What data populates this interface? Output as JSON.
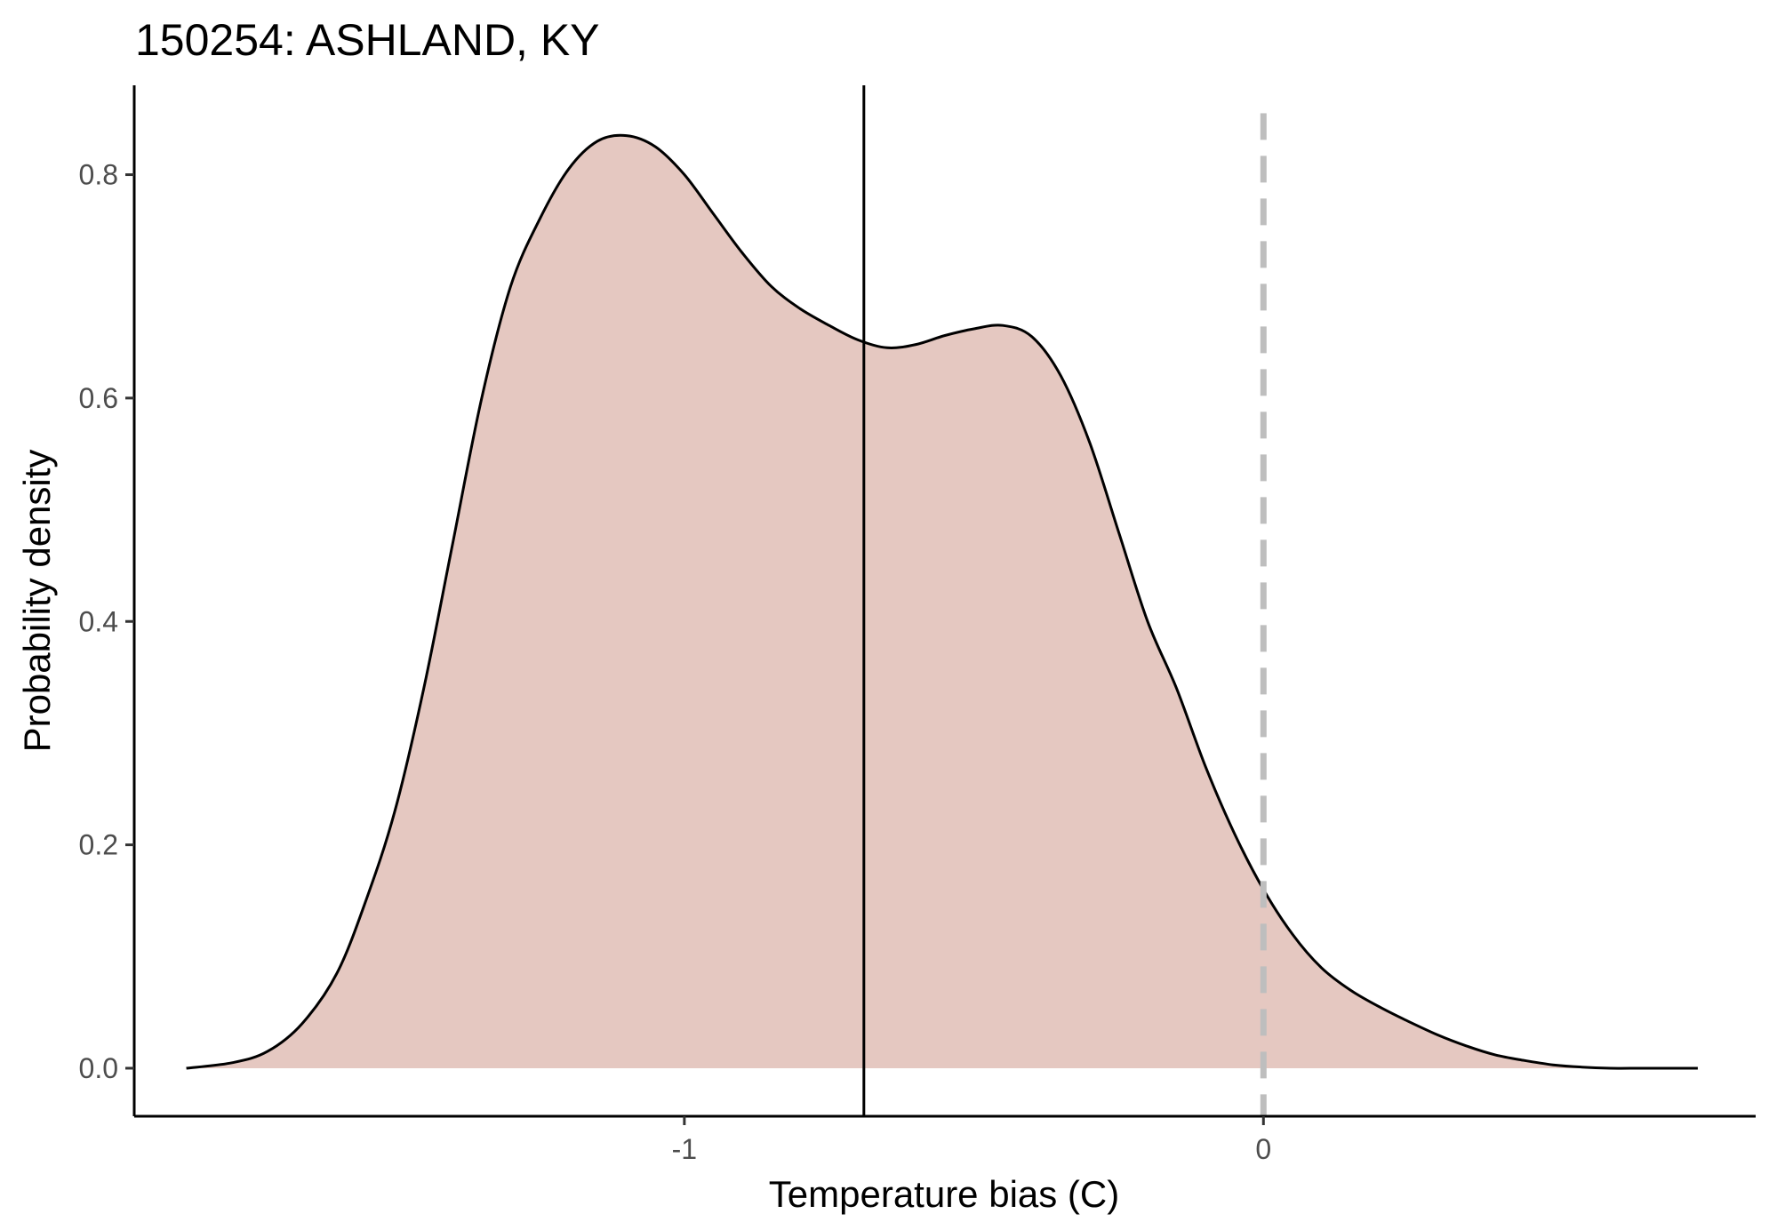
{
  "chart_data": {
    "type": "area",
    "title": "150254: ASHLAND, KY",
    "xlabel": "Temperature bias (C)",
    "ylabel": "Probability density",
    "xlim": [
      -1.95,
      0.85
    ],
    "ylim": [
      -0.043,
      0.88
    ],
    "x_ticks": [
      -1,
      0
    ],
    "x_tick_labels": [
      "-1",
      "0"
    ],
    "y_ticks": [
      0.0,
      0.2,
      0.4,
      0.6,
      0.8
    ],
    "y_tick_labels": [
      "0.0",
      "0.2",
      "0.4",
      "0.6",
      "0.8"
    ],
    "grid": false,
    "legend": "none",
    "fill_color": "#e5c8c1",
    "line_color": "#000000",
    "reference_lines": [
      {
        "x": -0.69,
        "style": "solid",
        "color": "#000000"
      },
      {
        "x": 0.0,
        "style": "dashed",
        "color": "#bebebe"
      }
    ],
    "series": [
      {
        "x": [
          -1.86,
          -1.78,
          -1.72,
          -1.66,
          -1.6,
          -1.55,
          -1.5,
          -1.45,
          -1.4,
          -1.35,
          -1.3,
          -1.25,
          -1.2,
          -1.15,
          -1.1,
          -1.05,
          -1.0,
          -0.95,
          -0.9,
          -0.85,
          -0.8,
          -0.75,
          -0.7,
          -0.65,
          -0.6,
          -0.55,
          -0.5,
          -0.45,
          -0.4,
          -0.35,
          -0.3,
          -0.25,
          -0.2,
          -0.15,
          -0.1,
          -0.05,
          0.0,
          0.05,
          0.1,
          0.15,
          0.2,
          0.25,
          0.3,
          0.35,
          0.4,
          0.45,
          0.5,
          0.55,
          0.6,
          0.65,
          0.7,
          0.75
        ],
        "y": [
          0.0,
          0.005,
          0.015,
          0.04,
          0.085,
          0.15,
          0.23,
          0.34,
          0.47,
          0.6,
          0.7,
          0.76,
          0.805,
          0.83,
          0.835,
          0.825,
          0.8,
          0.765,
          0.73,
          0.7,
          0.68,
          0.665,
          0.652,
          0.645,
          0.648,
          0.656,
          0.662,
          0.665,
          0.655,
          0.62,
          0.56,
          0.48,
          0.4,
          0.34,
          0.27,
          0.21,
          0.16,
          0.12,
          0.09,
          0.07,
          0.055,
          0.042,
          0.03,
          0.02,
          0.012,
          0.007,
          0.003,
          0.001,
          0.0,
          0.0,
          0.0,
          0.0
        ]
      }
    ]
  }
}
